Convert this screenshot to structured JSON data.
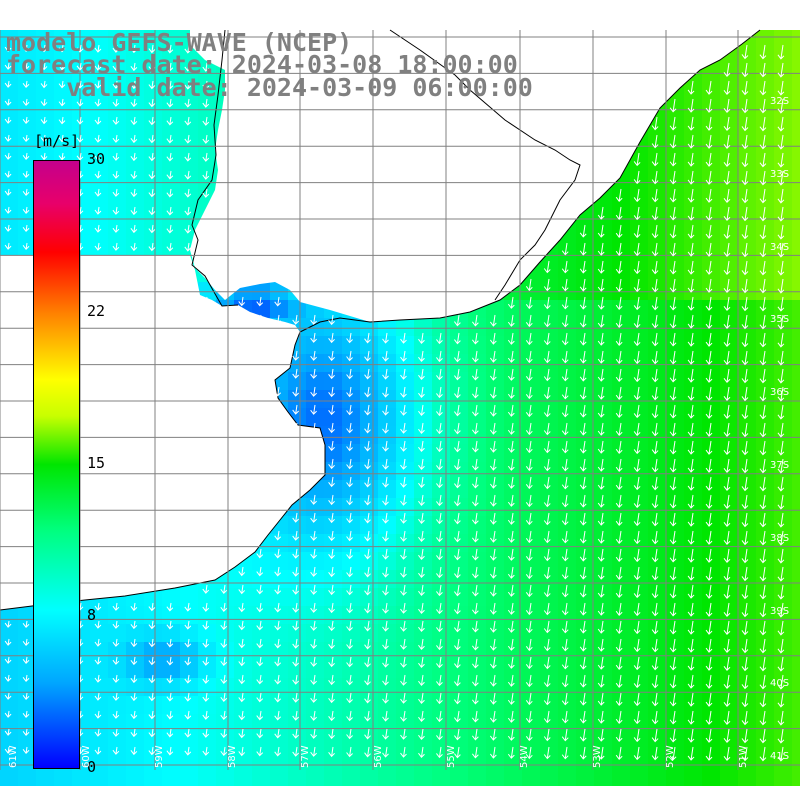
{
  "title": {
    "line1": "modelo GEFS-WAVE (NCEP)",
    "line2": "forecast date: 2024-03-08 18:00:00",
    "line3": "    valid date: 2024-03-09 06:00:00"
  },
  "colorbar": {
    "unit": "[m/s]",
    "ticks": [
      "30",
      "22",
      "15",
      "8",
      "0"
    ],
    "tick_values": [
      30,
      22,
      15,
      8,
      0
    ],
    "range": [
      0,
      30
    ],
    "colors": [
      "#0000ff",
      "#00a6ff",
      "#00ffff",
      "#00ff80",
      "#00e600",
      "#c8ff00",
      "#ffff00",
      "#ff8000",
      "#ff0000",
      "#e8006a",
      "#c4008c"
    ]
  },
  "map": {
    "land_color": "#ffffff",
    "coastline_color": "#000000",
    "gridline_color": "#808080",
    "arrow_color": "#ffffff",
    "lat_labels": [
      "32S",
      "33S",
      "34S",
      "35S",
      "36S",
      "37S",
      "38S",
      "39S",
      "40S",
      "41S"
    ],
    "lon_labels": [
      "61W",
      "60W",
      "59W",
      "58W",
      "57W",
      "56W",
      "55W",
      "54W",
      "53W",
      "52W",
      "51W"
    ],
    "grid": true
  }
}
